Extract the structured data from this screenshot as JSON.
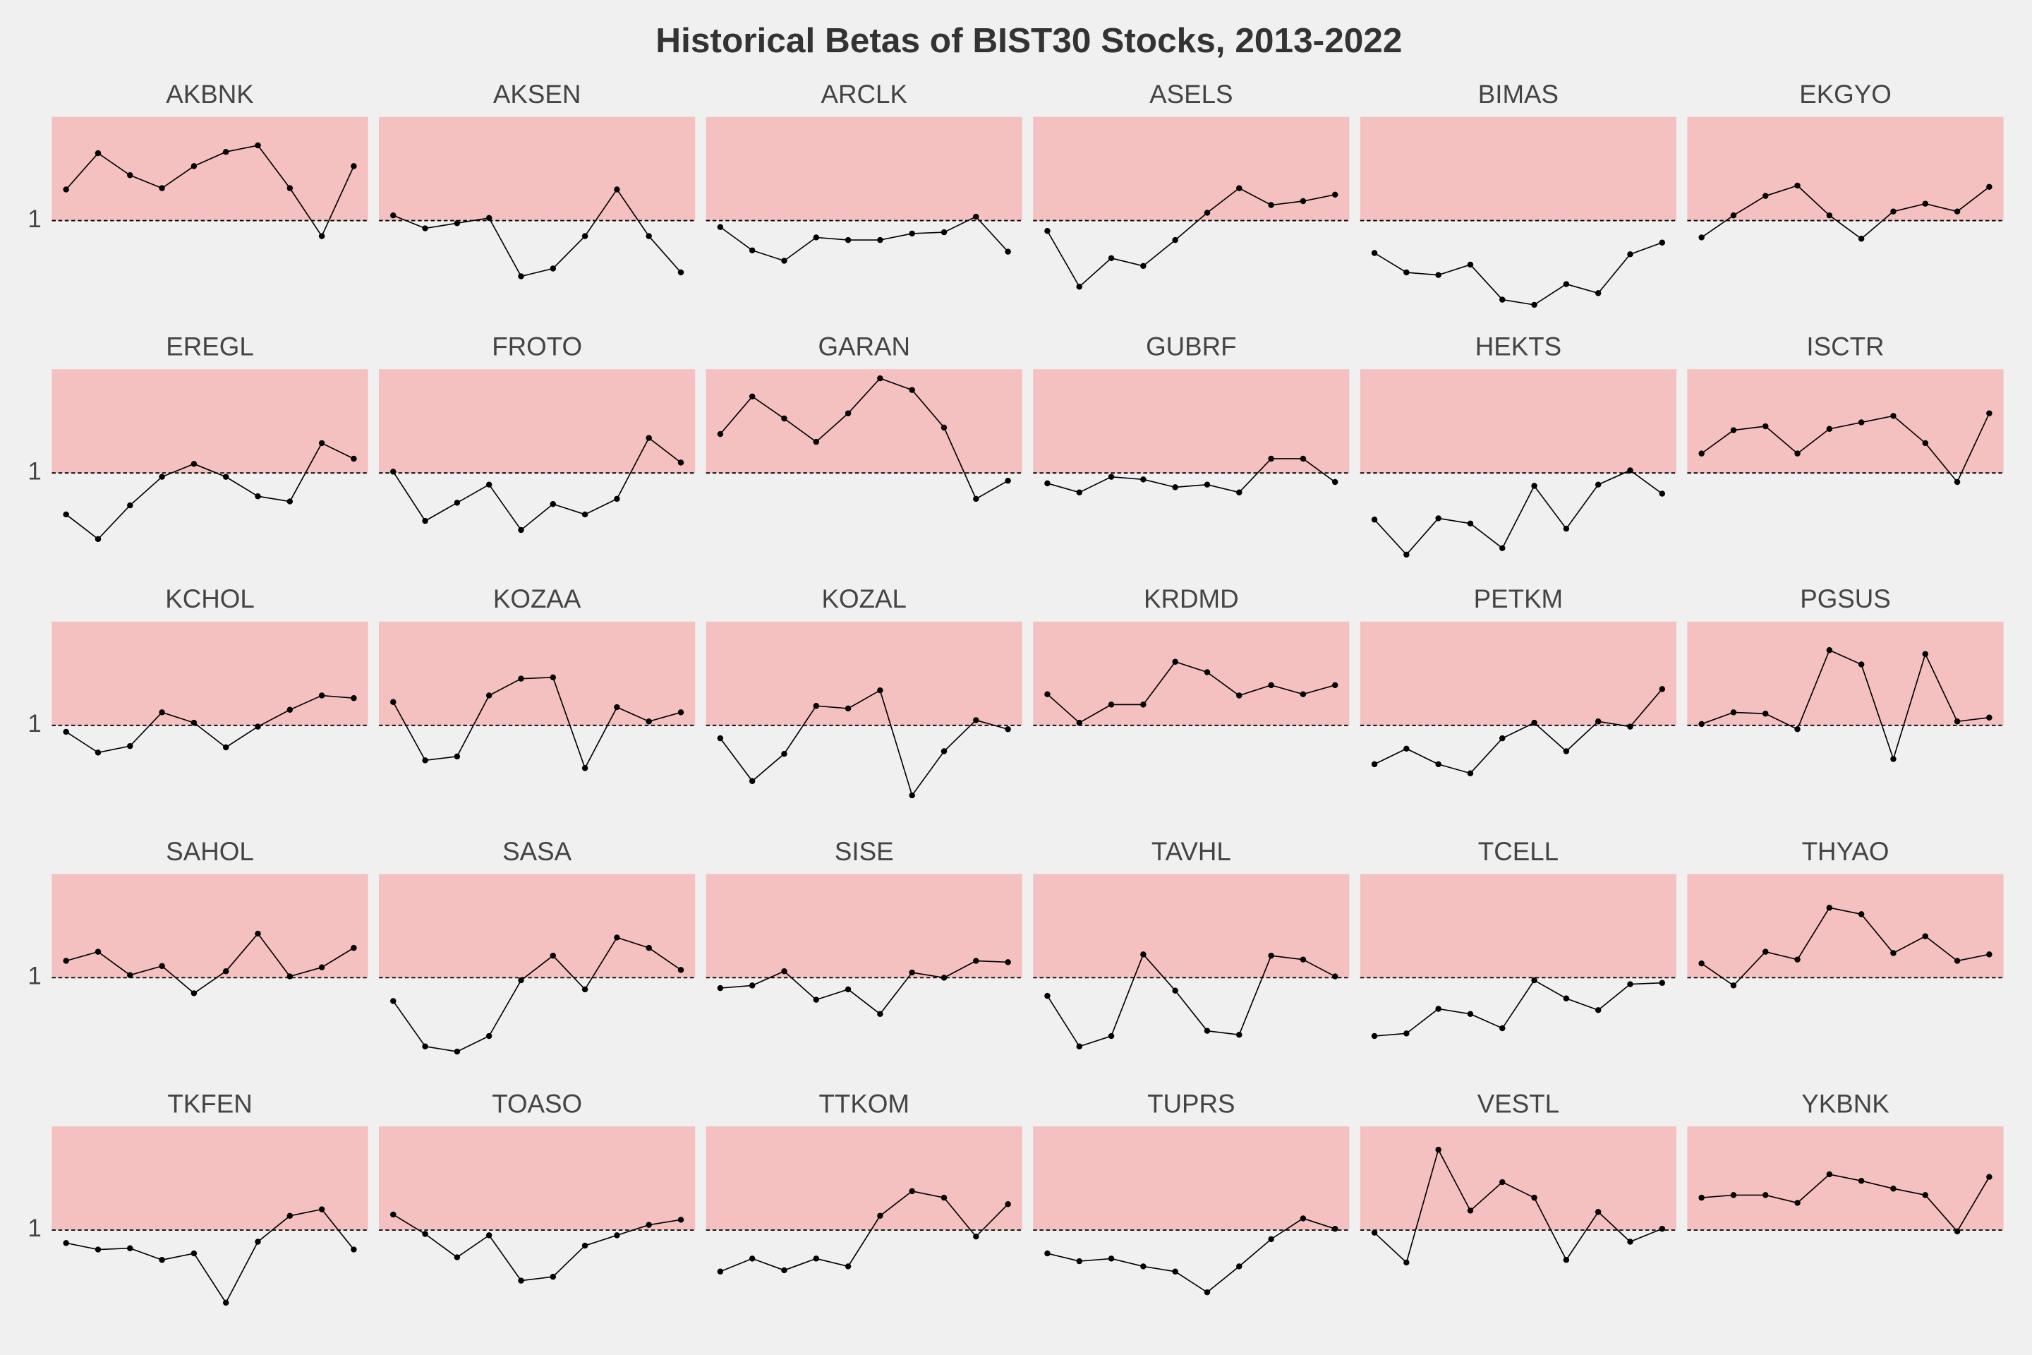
{
  "chart_data": {
    "type": "line",
    "title": "Historical Betas of BIST30 Stocks, 2013-2022",
    "ylim": [
      0.3,
      1.8
    ],
    "yticks": [
      1
    ],
    "color": "#000000",
    "shade_color": "#f4c0c0",
    "series": [
      {
        "name": "AKBNK",
        "values": [
          1.24,
          1.52,
          1.35,
          1.25,
          1.42,
          1.53,
          1.58,
          1.25,
          0.88,
          1.42
        ]
      },
      {
        "name": "AKSEN",
        "values": [
          1.04,
          0.94,
          0.98,
          1.02,
          0.57,
          0.63,
          0.88,
          1.24,
          0.88,
          0.6
        ]
      },
      {
        "name": "ARCLK",
        "values": [
          0.95,
          0.77,
          0.69,
          0.87,
          0.85,
          0.85,
          0.9,
          0.91,
          1.03,
          0.76
        ]
      },
      {
        "name": "ASELS",
        "values": [
          0.92,
          0.49,
          0.71,
          0.65,
          0.85,
          1.06,
          1.25,
          1.12,
          1.15,
          1.2
        ]
      },
      {
        "name": "BIMAS",
        "values": [
          0.75,
          0.6,
          0.58,
          0.66,
          0.39,
          0.35,
          0.51,
          0.44,
          0.74,
          0.83
        ]
      },
      {
        "name": "EKGYO",
        "values": [
          0.87,
          1.04,
          1.19,
          1.27,
          1.04,
          0.86,
          1.07,
          1.13,
          1.07,
          1.26
        ]
      },
      {
        "name": "EREGL",
        "values": [
          0.68,
          0.49,
          0.75,
          0.97,
          1.07,
          0.97,
          0.82,
          0.78,
          1.23,
          1.11
        ]
      },
      {
        "name": "FROTO",
        "values": [
          1.01,
          0.63,
          0.77,
          0.91,
          0.56,
          0.76,
          0.68,
          0.8,
          1.27,
          1.08
        ]
      },
      {
        "name": "GARAN",
        "values": [
          1.3,
          1.59,
          1.42,
          1.24,
          1.46,
          1.73,
          1.64,
          1.35,
          0.8,
          0.94
        ]
      },
      {
        "name": "GUBRF",
        "values": [
          0.92,
          0.85,
          0.97,
          0.95,
          0.89,
          0.91,
          0.85,
          1.11,
          1.11,
          0.93
        ]
      },
      {
        "name": "HEKTS",
        "values": [
          0.64,
          0.37,
          0.65,
          0.61,
          0.42,
          0.9,
          0.57,
          0.91,
          1.02,
          0.84
        ]
      },
      {
        "name": "ISCTR",
        "values": [
          1.15,
          1.33,
          1.36,
          1.15,
          1.34,
          1.39,
          1.44,
          1.23,
          0.93,
          1.46
        ]
      },
      {
        "name": "KCHOL",
        "values": [
          0.95,
          0.79,
          0.84,
          1.1,
          1.02,
          0.83,
          0.99,
          1.12,
          1.23,
          1.21
        ]
      },
      {
        "name": "KOZAA",
        "values": [
          1.18,
          0.73,
          0.76,
          1.23,
          1.36,
          1.37,
          0.67,
          1.14,
          1.03,
          1.1
        ]
      },
      {
        "name": "KOZAL",
        "values": [
          0.9,
          0.57,
          0.78,
          1.15,
          1.13,
          1.27,
          0.46,
          0.8,
          1.04,
          0.97
        ]
      },
      {
        "name": "KRDMD",
        "values": [
          1.24,
          1.02,
          1.16,
          1.16,
          1.49,
          1.41,
          1.23,
          1.31,
          1.24,
          1.31
        ]
      },
      {
        "name": "PETKM",
        "values": [
          0.7,
          0.82,
          0.7,
          0.63,
          0.9,
          1.02,
          0.8,
          1.03,
          0.99,
          1.28
        ]
      },
      {
        "name": "PGSUS",
        "values": [
          1.01,
          1.1,
          1.09,
          0.97,
          1.58,
          1.47,
          0.74,
          1.55,
          1.03,
          1.06
        ]
      },
      {
        "name": "SAHOL",
        "values": [
          1.13,
          1.2,
          1.02,
          1.09,
          0.88,
          1.05,
          1.34,
          1.01,
          1.08,
          1.23
        ]
      },
      {
        "name": "SASA",
        "values": [
          0.82,
          0.47,
          0.43,
          0.55,
          0.98,
          1.17,
          0.91,
          1.31,
          1.23,
          1.06
        ]
      },
      {
        "name": "SISE",
        "values": [
          0.92,
          0.94,
          1.05,
          0.83,
          0.91,
          0.72,
          1.04,
          1.0,
          1.13,
          1.12
        ]
      },
      {
        "name": "TAVHL",
        "values": [
          0.86,
          0.47,
          0.55,
          1.18,
          0.9,
          0.59,
          0.56,
          1.17,
          1.14,
          1.01
        ]
      },
      {
        "name": "TCELL",
        "values": [
          0.55,
          0.57,
          0.76,
          0.72,
          0.61,
          0.98,
          0.84,
          0.75,
          0.95,
          0.96
        ]
      },
      {
        "name": "THYAO",
        "values": [
          1.11,
          0.94,
          1.2,
          1.14,
          1.54,
          1.49,
          1.19,
          1.32,
          1.13,
          1.18
        ]
      },
      {
        "name": "TKFEN",
        "values": [
          0.9,
          0.85,
          0.86,
          0.77,
          0.82,
          0.44,
          0.91,
          1.11,
          1.16,
          0.85
        ]
      },
      {
        "name": "TOASO",
        "values": [
          1.12,
          0.97,
          0.79,
          0.96,
          0.61,
          0.64,
          0.88,
          0.96,
          1.04,
          1.08
        ]
      },
      {
        "name": "TTKOM",
        "values": [
          0.68,
          0.78,
          0.69,
          0.78,
          0.72,
          1.11,
          1.3,
          1.25,
          0.95,
          1.2
        ]
      },
      {
        "name": "TUPRS",
        "values": [
          0.82,
          0.76,
          0.78,
          0.72,
          0.68,
          0.52,
          0.72,
          0.93,
          1.09,
          1.01
        ]
      },
      {
        "name": "VESTL",
        "values": [
          0.98,
          0.75,
          1.62,
          1.15,
          1.37,
          1.25,
          0.77,
          1.14,
          0.91,
          1.01
        ]
      },
      {
        "name": "YKBNK",
        "values": [
          1.25,
          1.27,
          1.27,
          1.21,
          1.43,
          1.38,
          1.32,
          1.27,
          0.99,
          1.41
        ]
      }
    ]
  }
}
